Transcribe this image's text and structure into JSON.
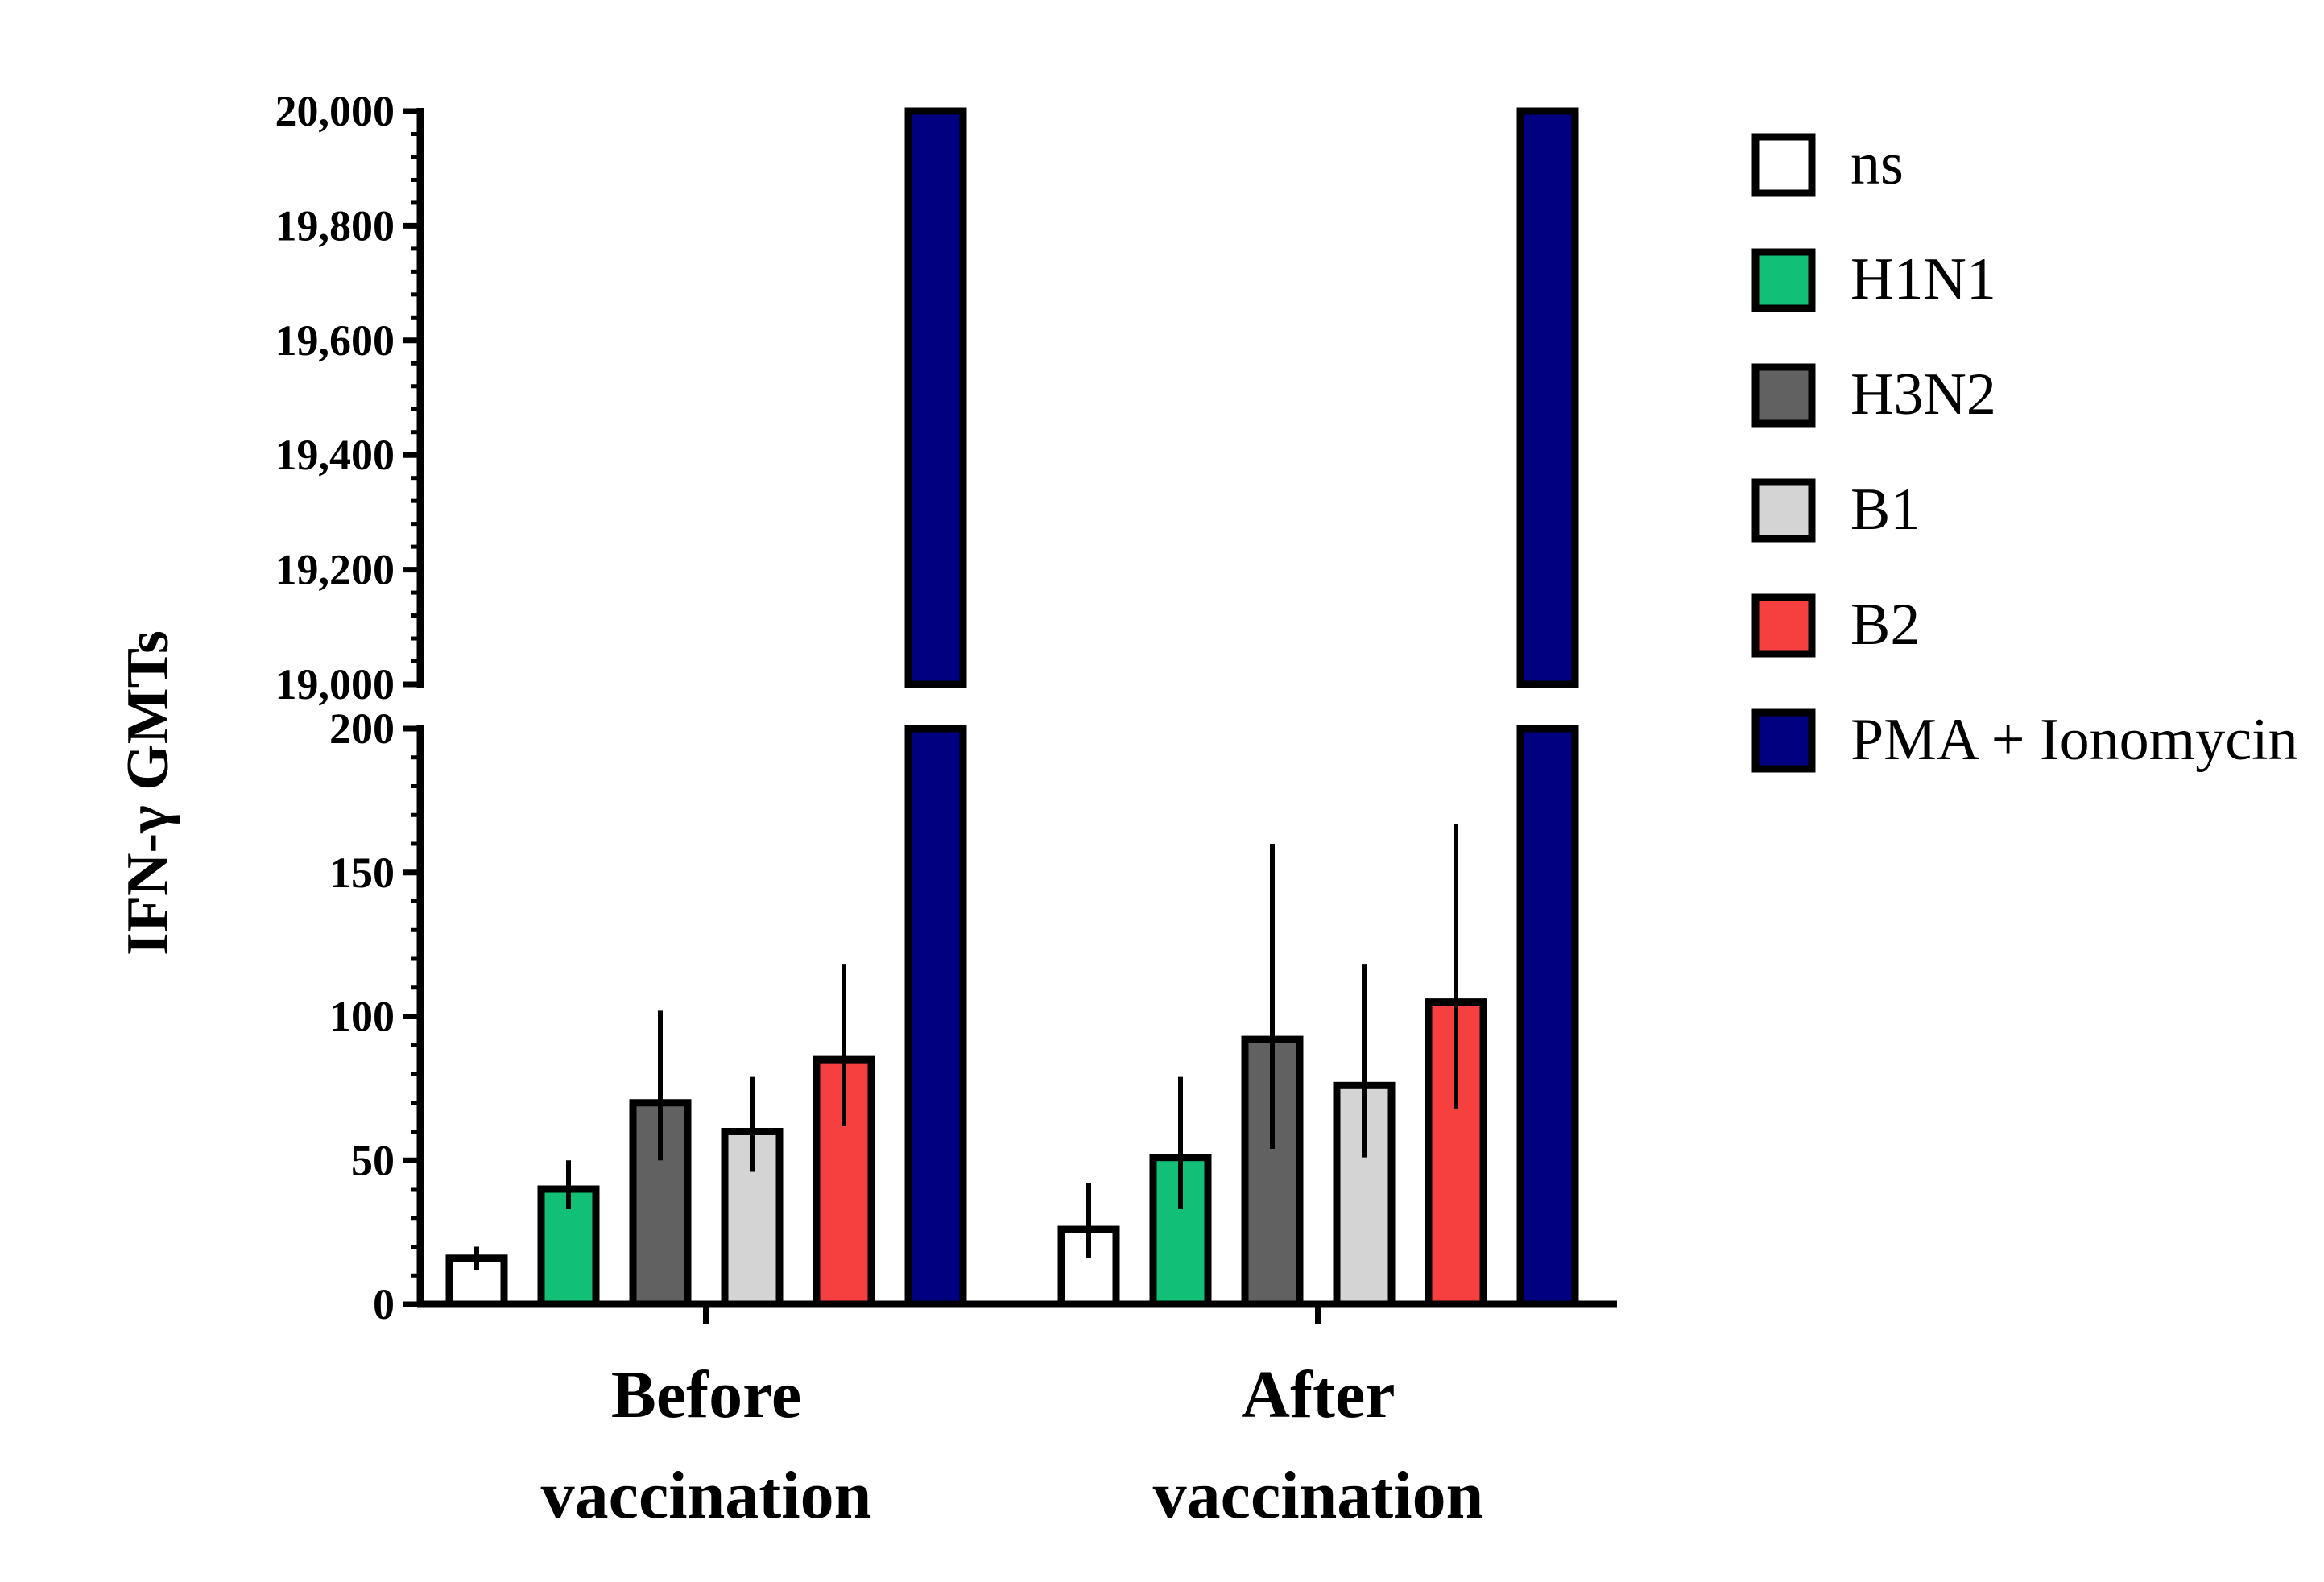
{
  "chart_data": {
    "type": "bar",
    "title": "",
    "xlabel": "",
    "ylabel": "IFN-γ GMTs",
    "categories": [
      [
        "Before",
        "vaccination"
      ],
      [
        "After",
        "vaccination"
      ]
    ],
    "y_axis_broken": true,
    "lower_segment": {
      "ylim": [
        0,
        200
      ],
      "major_ticks": [
        0,
        50,
        100,
        150,
        200
      ],
      "tick_labels": [
        "0",
        "50",
        "100",
        "150",
        "200"
      ]
    },
    "upper_segment": {
      "ylim": [
        19000,
        20000
      ],
      "major_ticks": [
        19000,
        19200,
        19400,
        19600,
        19800,
        20000
      ],
      "tick_labels": [
        "19,000",
        "19,200",
        "19,400",
        "19,600",
        "19,800",
        "20,000"
      ]
    },
    "series": [
      {
        "name": "ns",
        "color": "#ffffff",
        "values": [
          16,
          26
        ],
        "error_low": [
          12,
          16
        ],
        "error_high": [
          20,
          42
        ]
      },
      {
        "name": "H1N1",
        "color": "#11bf76",
        "values": [
          40,
          51
        ],
        "error_low": [
          33,
          33
        ],
        "error_high": [
          50,
          79
        ]
      },
      {
        "name": "H3N2",
        "color": "#616161",
        "values": [
          70,
          92
        ],
        "error_low": [
          50,
          54
        ],
        "error_high": [
          102,
          160
        ]
      },
      {
        "name": "B1",
        "color": "#d4d4d4",
        "values": [
          60,
          76
        ],
        "error_low": [
          46,
          51
        ],
        "error_high": [
          79,
          118
        ]
      },
      {
        "name": "B2",
        "color": "#f64040",
        "values": [
          85,
          105
        ],
        "error_low": [
          62,
          68
        ],
        "error_high": [
          118,
          167
        ]
      },
      {
        "name": "PMA + Ionomycin",
        "color": "#000080",
        "values": [
          20000,
          20000
        ],
        "error_low": null,
        "error_high": null
      }
    ],
    "legend": {
      "position": "right",
      "entries": [
        "ns",
        "H1N1",
        "H3N2",
        "B1",
        "B2",
        "PMA + Ionomycin"
      ]
    }
  }
}
